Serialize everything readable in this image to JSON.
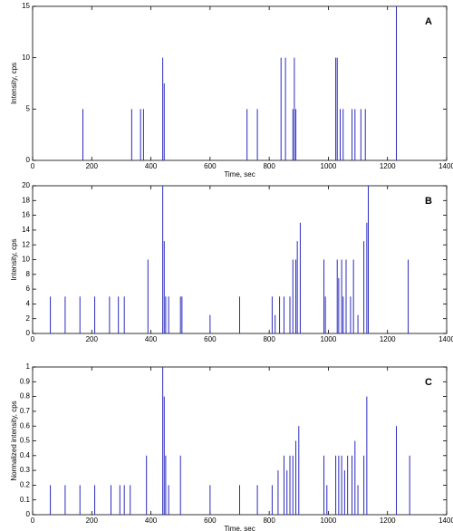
{
  "chart_data": [
    {
      "type": "spike",
      "label": "A",
      "xlabel": "Time, sec",
      "ylabel": "Intensity, cps",
      "xlim": [
        0,
        1400
      ],
      "ylim": [
        0,
        15
      ],
      "xticks": [
        0,
        200,
        400,
        600,
        800,
        1000,
        1200,
        1400
      ],
      "yticks": [
        0,
        5,
        10,
        15
      ],
      "color": "#2b2bbf",
      "x": [
        170,
        335,
        365,
        375,
        440,
        445,
        725,
        760,
        840,
        855,
        880,
        885,
        890,
        1025,
        1030,
        1040,
        1050,
        1080,
        1090,
        1110,
        1125,
        1230
      ],
      "values": [
        5,
        5,
        5,
        5,
        10,
        7.5,
        5,
        5,
        10,
        10,
        5,
        10,
        5,
        10,
        10,
        5,
        5,
        5,
        5,
        5,
        5,
        15
      ]
    },
    {
      "type": "spike",
      "label": "B",
      "ylabel": "Intensity, cps",
      "xlim": [
        0,
        1400
      ],
      "ylim": [
        0,
        20
      ],
      "xticks": [
        0,
        200,
        400,
        600,
        800,
        1000,
        1200,
        1400
      ],
      "yticks": [
        0,
        2,
        4,
        6,
        8,
        10,
        12,
        14,
        16,
        18,
        20
      ],
      "color": "#2b2bbf",
      "x": [
        60,
        110,
        160,
        210,
        260,
        290,
        310,
        390,
        440,
        445,
        450,
        460,
        500,
        505,
        600,
        700,
        810,
        820,
        835,
        850,
        870,
        880,
        890,
        895,
        905,
        985,
        990,
        1030,
        1035,
        1045,
        1050,
        1060,
        1075,
        1085,
        1100,
        1120,
        1130,
        1135,
        1270
      ],
      "values": [
        5,
        5,
        5,
        5,
        5,
        5,
        5,
        10,
        20,
        12.5,
        5,
        5,
        5,
        5,
        2.5,
        5,
        5,
        2.5,
        5,
        5,
        5,
        10,
        10,
        12.5,
        15,
        10,
        5,
        10,
        7.5,
        10,
        5,
        10,
        5,
        10,
        2.5,
        12.5,
        15,
        20,
        10
      ]
    },
    {
      "type": "spike",
      "label": "C",
      "xlabel": "Time, sec",
      "ylabel": "Normalized intensity, cps",
      "xlim": [
        0,
        1400
      ],
      "ylim": [
        0,
        1
      ],
      "xticks": [
        0,
        200,
        400,
        600,
        800,
        1000,
        1200,
        1400
      ],
      "yticks": [
        0,
        0.1,
        0.2,
        0.3,
        0.4,
        0.5,
        0.6,
        0.7,
        0.8,
        0.9,
        1
      ],
      "color": "#2b2bbf",
      "x": [
        60,
        110,
        160,
        210,
        265,
        295,
        310,
        330,
        385,
        440,
        445,
        450,
        460,
        500,
        600,
        700,
        760,
        810,
        830,
        850,
        860,
        870,
        880,
        890,
        900,
        985,
        995,
        1025,
        1035,
        1045,
        1055,
        1065,
        1080,
        1090,
        1100,
        1120,
        1130,
        1230,
        1275
      ],
      "values": [
        0.2,
        0.2,
        0.2,
        0.2,
        0.2,
        0.2,
        0.2,
        0.2,
        0.4,
        1,
        0.8,
        0.4,
        0.2,
        0.4,
        0.2,
        0.2,
        0.2,
        0.2,
        0.3,
        0.4,
        0.3,
        0.4,
        0.4,
        0.5,
        0.6,
        0.4,
        0.2,
        0.4,
        0.4,
        0.4,
        0.3,
        0.4,
        0.4,
        0.5,
        0.2,
        0.4,
        0.8,
        0.6,
        0.4
      ]
    }
  ]
}
